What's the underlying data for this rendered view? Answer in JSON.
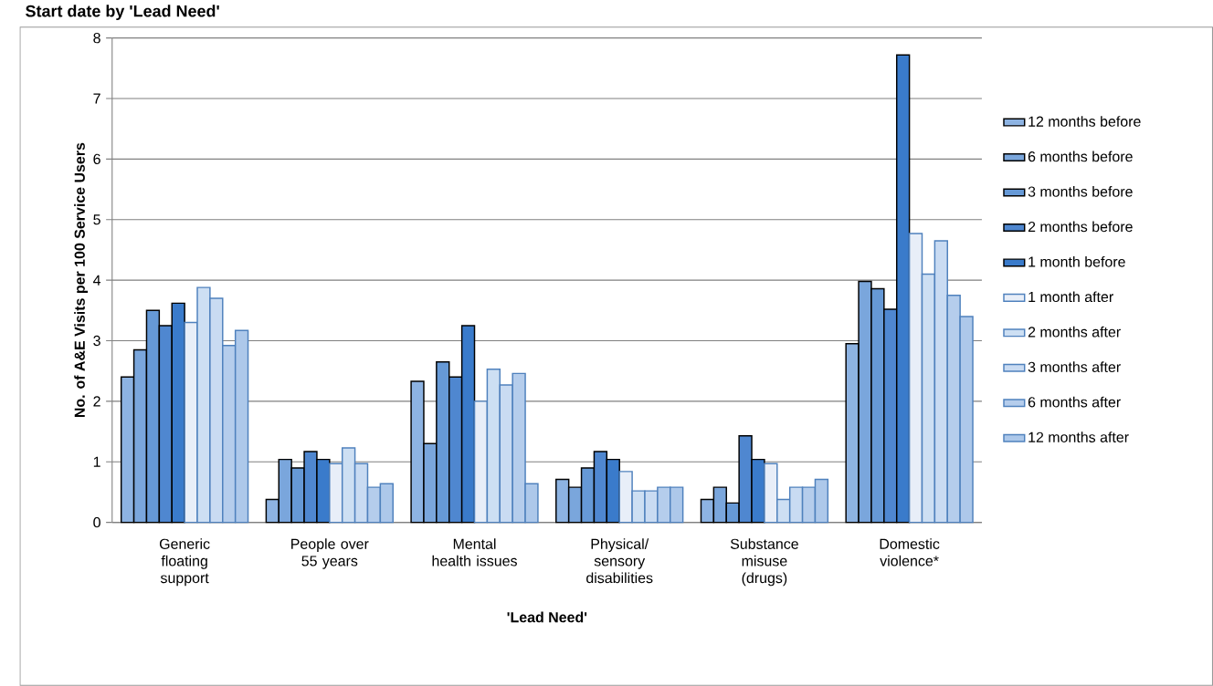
{
  "chart_data": {
    "type": "bar",
    "title": "Start date by 'Lead Need'",
    "xlabel": "'Lead Need'",
    "ylabel": "No. of A&E Visits per 100 Service Users",
    "categories": [
      "Generic floating support",
      "People over 55 years",
      "Mental health issues",
      "Physical/ sensory disabilities",
      "Substance misuse (drugs)",
      "Domestic violence*"
    ],
    "series": [
      {
        "name": "12 months before",
        "color": "#8db3e2",
        "values": [
          2.4,
          0.38,
          2.33,
          0.71,
          0.38,
          2.95
        ]
      },
      {
        "name": "6 months before",
        "color": "#7aa6dc",
        "values": [
          2.85,
          1.04,
          1.3,
          0.58,
          0.58,
          3.98
        ]
      },
      {
        "name": "3 months before",
        "color": "#6699d6",
        "values": [
          3.5,
          0.9,
          2.65,
          0.9,
          0.32,
          3.86
        ]
      },
      {
        "name": "2 months before",
        "color": "#4f87d0",
        "values": [
          3.25,
          1.17,
          2.4,
          1.17,
          1.43,
          3.52
        ]
      },
      {
        "name": "1 month before",
        "color": "#3a7bcb",
        "values": [
          3.62,
          1.04,
          3.25,
          1.04,
          1.04,
          7.72
        ]
      },
      {
        "name": "1 month after",
        "color": "#e8eef8",
        "values": [
          3.3,
          0.97,
          2.0,
          0.84,
          0.97,
          4.77
        ]
      },
      {
        "name": "2 months after",
        "color": "#cddff3",
        "values": [
          3.88,
          1.23,
          2.53,
          0.52,
          0.38,
          4.1
        ]
      },
      {
        "name": "3 months after",
        "color": "#c9dbf2",
        "values": [
          3.7,
          0.97,
          2.27,
          0.52,
          0.58,
          4.65
        ]
      },
      {
        "name": "6 months after",
        "color": "#b5cdec",
        "values": [
          2.92,
          0.58,
          2.46,
          0.58,
          0.58,
          3.75
        ]
      },
      {
        "name": "12 months after",
        "color": "#adc8ea",
        "values": [
          3.17,
          0.64,
          0.64,
          0.58,
          0.71,
          3.4
        ]
      }
    ],
    "ylim": [
      0,
      8
    ],
    "yticks": [
      0,
      1,
      2,
      3,
      4,
      5,
      6,
      7,
      8
    ],
    "grid": "y",
    "legend": "right"
  }
}
